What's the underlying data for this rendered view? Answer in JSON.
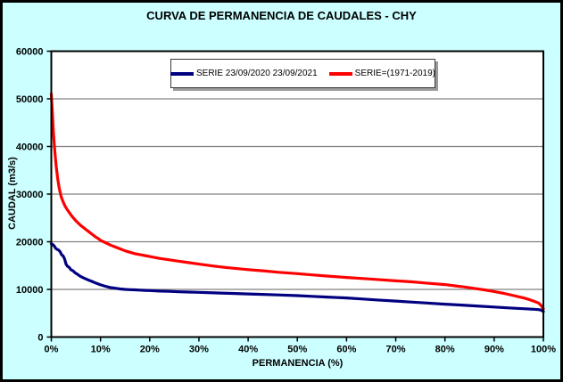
{
  "chart_data": {
    "type": "line",
    "title": "CURVA DE PERMANENCIA DE CAUDALES - CHY",
    "xlabel": "PERMANENCIA (%)",
    "ylabel": "CAUDAL (m3/s)",
    "xlim": [
      0,
      100
    ],
    "ylim": [
      0,
      60000
    ],
    "x_tick_labels": [
      "0%",
      "10%",
      "20%",
      "30%",
      "40%",
      "50%",
      "60%",
      "70%",
      "80%",
      "90%",
      "100%"
    ],
    "y_tick_labels": [
      "0",
      "10000",
      "20000",
      "30000",
      "40000",
      "50000",
      "60000"
    ],
    "grid": "horizontal",
    "legend_position": "top-center",
    "colors": {
      "background": "#CCFFFF",
      "plot_background": "#FFFFFF",
      "gridline": "#808080",
      "axis": "#000000"
    },
    "series": [
      {
        "name": "SERIE 23/09/2020 23/09/2021",
        "color": "#000080",
        "points": [
          [
            0,
            19600
          ],
          [
            0.3,
            19400
          ],
          [
            0.6,
            19100
          ],
          [
            0.9,
            18600
          ],
          [
            1.2,
            18400
          ],
          [
            1.5,
            18250
          ],
          [
            1.8,
            17900
          ],
          [
            2.1,
            17250
          ],
          [
            2.4,
            17050
          ],
          [
            2.7,
            16400
          ],
          [
            3,
            15300
          ],
          [
            3.3,
            14850
          ],
          [
            3.6,
            14650
          ],
          [
            4,
            14100
          ],
          [
            4.4,
            13900
          ],
          [
            4.8,
            13500
          ],
          [
            5.2,
            13250
          ],
          [
            5.6,
            12950
          ],
          [
            6,
            12700
          ],
          [
            6.5,
            12450
          ],
          [
            7,
            12200
          ],
          [
            7.6,
            11950
          ],
          [
            8.2,
            11700
          ],
          [
            9,
            11350
          ],
          [
            10,
            10950
          ],
          [
            11,
            10650
          ],
          [
            12,
            10400
          ],
          [
            13,
            10250
          ],
          [
            14,
            10100
          ],
          [
            15,
            10000
          ],
          [
            16,
            9950
          ],
          [
            17,
            9900
          ],
          [
            18,
            9850
          ],
          [
            19,
            9800
          ],
          [
            20,
            9750
          ],
          [
            22,
            9650
          ],
          [
            24,
            9580
          ],
          [
            26,
            9500
          ],
          [
            28,
            9440
          ],
          [
            30,
            9380
          ],
          [
            33,
            9280
          ],
          [
            36,
            9180
          ],
          [
            40,
            9050
          ],
          [
            43,
            8950
          ],
          [
            46,
            8850
          ],
          [
            50,
            8700
          ],
          [
            53,
            8550
          ],
          [
            56,
            8400
          ],
          [
            60,
            8200
          ],
          [
            63,
            8000
          ],
          [
            66,
            7800
          ],
          [
            70,
            7550
          ],
          [
            73,
            7350
          ],
          [
            76,
            7150
          ],
          [
            80,
            6900
          ],
          [
            83,
            6720
          ],
          [
            86,
            6550
          ],
          [
            90,
            6300
          ],
          [
            93,
            6120
          ],
          [
            96,
            5950
          ],
          [
            98,
            5830
          ],
          [
            99,
            5750
          ],
          [
            99.6,
            5650
          ],
          [
            100,
            5350
          ]
        ]
      },
      {
        "name": "SERIE=(1971-2019)",
        "color": "#FF0000",
        "points": [
          [
            0,
            51000
          ],
          [
            0.2,
            47500
          ],
          [
            0.4,
            43500
          ],
          [
            0.6,
            40500
          ],
          [
            0.8,
            38000
          ],
          [
            1,
            35800
          ],
          [
            1.3,
            33200
          ],
          [
            1.6,
            31300
          ],
          [
            2,
            29500
          ],
          [
            2.4,
            28400
          ],
          [
            2.8,
            27500
          ],
          [
            3.2,
            26800
          ],
          [
            3.6,
            26200
          ],
          [
            4,
            25600
          ],
          [
            4.5,
            25000
          ],
          [
            5,
            24400
          ],
          [
            5.5,
            23900
          ],
          [
            6,
            23400
          ],
          [
            6.5,
            23000
          ],
          [
            7,
            22600
          ],
          [
            7.5,
            22200
          ],
          [
            8,
            21800
          ],
          [
            8.5,
            21400
          ],
          [
            9,
            21000
          ],
          [
            9.5,
            20700
          ],
          [
            10,
            20300
          ],
          [
            11,
            19800
          ],
          [
            12,
            19300
          ],
          [
            13,
            18900
          ],
          [
            14,
            18500
          ],
          [
            15,
            18100
          ],
          [
            16,
            17800
          ],
          [
            17,
            17500
          ],
          [
            18,
            17300
          ],
          [
            19,
            17100
          ],
          [
            20,
            16900
          ],
          [
            22,
            16500
          ],
          [
            24,
            16200
          ],
          [
            26,
            15900
          ],
          [
            28,
            15600
          ],
          [
            30,
            15300
          ],
          [
            33,
            14900
          ],
          [
            36,
            14550
          ],
          [
            40,
            14150
          ],
          [
            43,
            13900
          ],
          [
            46,
            13600
          ],
          [
            50,
            13300
          ],
          [
            53,
            13050
          ],
          [
            56,
            12800
          ],
          [
            60,
            12500
          ],
          [
            63,
            12300
          ],
          [
            66,
            12100
          ],
          [
            70,
            11800
          ],
          [
            73,
            11600
          ],
          [
            76,
            11350
          ],
          [
            80,
            11000
          ],
          [
            82,
            10750
          ],
          [
            84,
            10500
          ],
          [
            86,
            10200
          ],
          [
            88,
            9900
          ],
          [
            90,
            9550
          ],
          [
            92,
            9150
          ],
          [
            94,
            8700
          ],
          [
            95,
            8450
          ],
          [
            96,
            8200
          ],
          [
            97,
            7900
          ],
          [
            98,
            7550
          ],
          [
            99,
            7150
          ],
          [
            99.5,
            6700
          ],
          [
            100,
            5900
          ]
        ]
      }
    ]
  }
}
